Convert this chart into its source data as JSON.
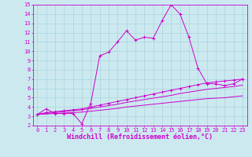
{
  "background_color": "#cce9f0",
  "grid_color": "#aad4dc",
  "line_color": "#cc00cc",
  "xlim": [
    -0.5,
    23.5
  ],
  "ylim": [
    2,
    15
  ],
  "xticks": [
    0,
    1,
    2,
    3,
    4,
    5,
    6,
    7,
    8,
    9,
    10,
    11,
    12,
    13,
    14,
    15,
    16,
    17,
    18,
    19,
    20,
    21,
    22,
    23
  ],
  "yticks": [
    2,
    3,
    4,
    5,
    6,
    7,
    8,
    9,
    10,
    11,
    12,
    13,
    14,
    15
  ],
  "xlabel": "Windchill (Refroidissement éolien,°C)",
  "series1_x": [
    0,
    1,
    2,
    3,
    4,
    5,
    6,
    7,
    8,
    9,
    10,
    11,
    12,
    13,
    14,
    15,
    16,
    17,
    18,
    19,
    20,
    21,
    22,
    23
  ],
  "series1_y": [
    3.2,
    3.8,
    3.3,
    3.3,
    3.3,
    2.2,
    4.4,
    9.5,
    9.9,
    11.0,
    12.2,
    11.2,
    11.5,
    11.4,
    13.3,
    15.0,
    14.0,
    11.5,
    8.2,
    6.5,
    6.5,
    6.3,
    6.5,
    7.0
  ],
  "series2_x": [
    0,
    1,
    2,
    3,
    4,
    5,
    6,
    7,
    8,
    9,
    10,
    11,
    12,
    13,
    14,
    15,
    16,
    17,
    18,
    19,
    20,
    21,
    22,
    23
  ],
  "series2_y": [
    3.2,
    3.4,
    3.5,
    3.6,
    3.7,
    3.8,
    4.0,
    4.2,
    4.4,
    4.6,
    4.8,
    5.0,
    5.2,
    5.4,
    5.6,
    5.8,
    6.0,
    6.2,
    6.4,
    6.6,
    6.7,
    6.8,
    6.9,
    7.0
  ],
  "series3_x": [
    0,
    1,
    2,
    3,
    4,
    5,
    6,
    7,
    8,
    9,
    10,
    11,
    12,
    13,
    14,
    15,
    16,
    17,
    18,
    19,
    20,
    21,
    22,
    23
  ],
  "series3_y": [
    3.2,
    3.3,
    3.4,
    3.5,
    3.6,
    3.7,
    3.85,
    4.0,
    4.15,
    4.3,
    4.5,
    4.65,
    4.8,
    4.95,
    5.1,
    5.25,
    5.45,
    5.6,
    5.75,
    5.9,
    6.0,
    6.1,
    6.2,
    6.35
  ],
  "series4_x": [
    0,
    1,
    2,
    3,
    4,
    5,
    6,
    7,
    8,
    9,
    10,
    11,
    12,
    13,
    14,
    15,
    16,
    17,
    18,
    19,
    20,
    21,
    22,
    23
  ],
  "series4_y": [
    3.2,
    3.25,
    3.3,
    3.35,
    3.4,
    3.45,
    3.55,
    3.65,
    3.75,
    3.85,
    4.0,
    4.1,
    4.2,
    4.3,
    4.4,
    4.5,
    4.6,
    4.7,
    4.8,
    4.9,
    4.95,
    5.0,
    5.1,
    5.2
  ],
  "tick_fontsize": 5.0,
  "label_fontsize": 6.0,
  "figsize": [
    3.2,
    2.0
  ],
  "dpi": 100
}
